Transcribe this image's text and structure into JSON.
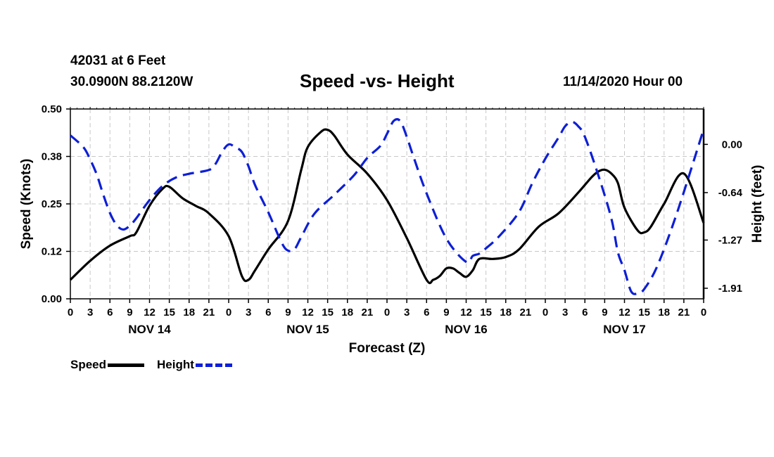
{
  "header": {
    "station": "42031 at 6 Feet",
    "coords": "30.0900N 88.2120W",
    "title": "Speed -vs- Height",
    "datetime": "11/14/2020 Hour 00"
  },
  "legend": {
    "speed_label": "Speed",
    "height_label": "Height"
  },
  "colors": {
    "speed": "#000000",
    "height": "#0d1fd6",
    "grid": "#c8c8c8"
  },
  "chart_data": {
    "type": "line",
    "title": "Speed -vs- Height",
    "xlabel": "Forecast (Z)",
    "ylabel": "Speed (Knots)",
    "y2label": "Height (feet)",
    "xlim": [
      0,
      96
    ],
    "ylim": [
      0,
      0.5
    ],
    "y2lim": [
      -2.05,
      0.47
    ],
    "grid": true,
    "x_ticks": [
      0,
      3,
      6,
      9,
      12,
      15,
      18,
      21,
      24,
      27,
      30,
      33,
      36,
      39,
      42,
      45,
      48,
      51,
      54,
      57,
      60,
      63,
      66,
      69,
      72,
      75,
      78,
      81,
      84,
      87,
      90,
      93,
      96
    ],
    "x_tick_labels": [
      "0",
      "3",
      "6",
      "9",
      "12",
      "15",
      "18",
      "21",
      "0",
      "3",
      "6",
      "9",
      "12",
      "15",
      "18",
      "21",
      "0",
      "3",
      "6",
      "9",
      "12",
      "15",
      "18",
      "21",
      "0",
      "3",
      "6",
      "9",
      "12",
      "15",
      "18",
      "21",
      "0"
    ],
    "y_ticks": [
      0,
      0.125,
      0.25,
      0.375,
      0.5
    ],
    "y_tick_labels": [
      "0.00",
      "0.12",
      "0.25",
      "0.38",
      "0.50"
    ],
    "y2_ticks": [
      0.0,
      -0.64,
      -1.27,
      -1.91
    ],
    "y2_tick_labels": [
      "0.00",
      "-0.64",
      "-1.27",
      "-1.91"
    ],
    "date_labels": [
      {
        "x": 12,
        "label": "NOV 14"
      },
      {
        "x": 36,
        "label": "NOV 15"
      },
      {
        "x": 60,
        "label": "NOV 16"
      },
      {
        "x": 84,
        "label": "NOV 17"
      }
    ],
    "series": [
      {
        "name": "Speed",
        "axis": "left",
        "style": "solid",
        "x": [
          0,
          3,
          6,
          9,
          10,
          12,
          14,
          15,
          17,
          19,
          21,
          24,
          26,
          27,
          28,
          30,
          33,
          35,
          36,
          38,
          39,
          40,
          42,
          45,
          48,
          51,
          54,
          55,
          56,
          57,
          58,
          59,
          60,
          61,
          62,
          64,
          66,
          68,
          71,
          74,
          77,
          79,
          80,
          81,
          82,
          83,
          84,
          86,
          87,
          88,
          90,
          93,
          96
        ],
        "values": [
          0.05,
          0.1,
          0.14,
          0.165,
          0.175,
          0.245,
          0.29,
          0.295,
          0.265,
          0.245,
          0.225,
          0.165,
          0.06,
          0.05,
          0.075,
          0.13,
          0.205,
          0.34,
          0.4,
          0.44,
          0.445,
          0.43,
          0.38,
          0.33,
          0.26,
          0.16,
          0.05,
          0.05,
          0.06,
          0.08,
          0.08,
          0.068,
          0.058,
          0.075,
          0.105,
          0.105,
          0.11,
          0.13,
          0.19,
          0.225,
          0.28,
          0.32,
          0.335,
          0.34,
          0.33,
          0.305,
          0.24,
          0.18,
          0.175,
          0.19,
          0.25,
          0.33,
          0.2
        ]
      },
      {
        "name": "Height",
        "axis": "right",
        "style": "dashed",
        "x": [
          0,
          2,
          3,
          4,
          5,
          6,
          7,
          8,
          9,
          10,
          12,
          14,
          16,
          18,
          21,
          22,
          23,
          24,
          25,
          26,
          27,
          28,
          30,
          32,
          33,
          34,
          35,
          37,
          40,
          43,
          45,
          47,
          48,
          49,
          50,
          51,
          52,
          54,
          57,
          60,
          61,
          62,
          63,
          65,
          68,
          70,
          72,
          74,
          75,
          76,
          77,
          78,
          80,
          82,
          83,
          84,
          85,
          86,
          87,
          89,
          92,
          96
        ],
        "values": [
          0.12,
          -0.04,
          -0.2,
          -0.4,
          -0.67,
          -0.91,
          -1.07,
          -1.13,
          -1.08,
          -0.98,
          -0.74,
          -0.55,
          -0.44,
          -0.39,
          -0.34,
          -0.26,
          -0.1,
          0.0,
          -0.04,
          -0.1,
          -0.29,
          -0.54,
          -0.9,
          -1.3,
          -1.41,
          -1.39,
          -1.23,
          -0.92,
          -0.67,
          -0.41,
          -0.18,
          -0.02,
          0.14,
          0.31,
          0.31,
          0.1,
          -0.16,
          -0.65,
          -1.25,
          -1.56,
          -1.48,
          -1.45,
          -1.38,
          -1.22,
          -0.9,
          -0.52,
          -0.19,
          0.09,
          0.24,
          0.3,
          0.24,
          0.1,
          -0.4,
          -0.98,
          -1.43,
          -1.67,
          -1.95,
          -1.98,
          -1.92,
          -1.61,
          -0.9,
          0.2
        ]
      }
    ]
  }
}
